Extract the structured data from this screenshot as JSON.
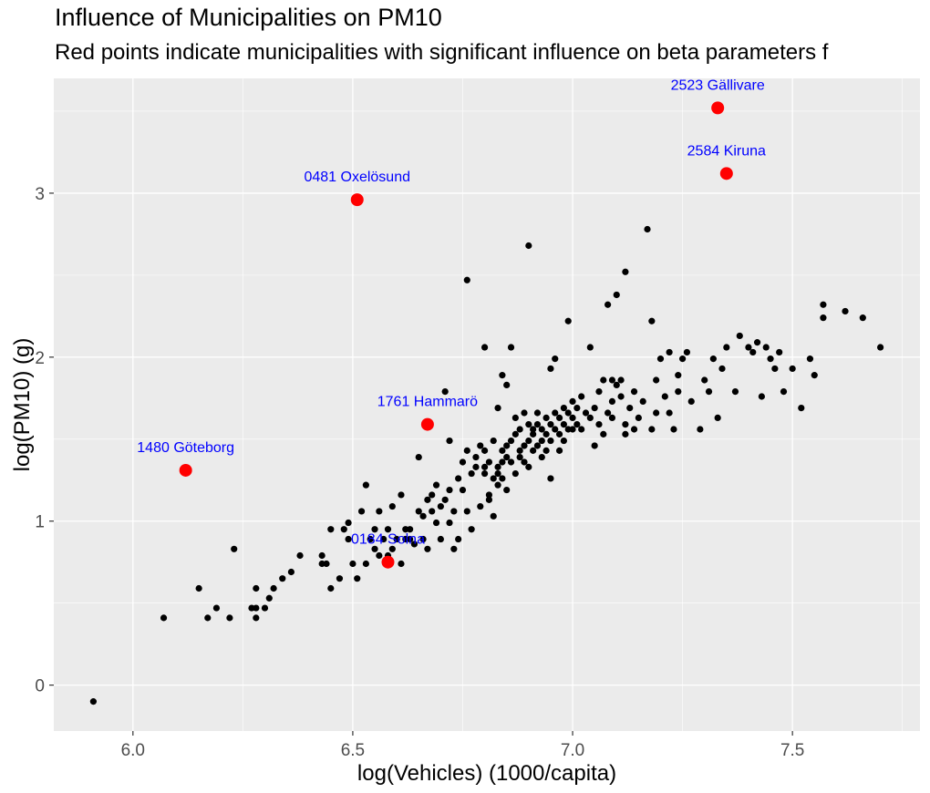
{
  "chart_data": {
    "type": "scatter",
    "title": "Influence of Municipalities on PM10",
    "subtitle": "Red points indicate municipalities with significant influence on beta parameters f",
    "xlabel": "log(Vehicles) (1000/capita)",
    "ylabel": "log(PM10) (g)",
    "xlim": [
      5.82,
      7.79
    ],
    "ylim": [
      -0.28,
      3.7
    ],
    "x_ticks": [
      "6.0",
      "6.5",
      "7.0",
      "7.5"
    ],
    "y_ticks": [
      "0",
      "1",
      "2",
      "3"
    ],
    "grid": true,
    "background": "#EBEBEB",
    "point_color": "#000000",
    "highlight_color": "#FF0000",
    "label_color": "#0000FF",
    "highlighted": [
      {
        "x": 7.33,
        "y": 3.52,
        "label": "2523 Gällivare"
      },
      {
        "x": 7.35,
        "y": 3.12,
        "label": "2584 Kiruna"
      },
      {
        "x": 6.51,
        "y": 2.96,
        "label": "0481 Oxelösund"
      },
      {
        "x": 6.67,
        "y": 1.59,
        "label": "1761 Hammarö"
      },
      {
        "x": 6.12,
        "y": 1.31,
        "label": "1480 Göteborg"
      },
      {
        "x": 6.58,
        "y": 0.75,
        "label": "0184 Solna"
      }
    ],
    "points": [
      [
        5.91,
        -0.1
      ],
      [
        6.07,
        0.41
      ],
      [
        6.15,
        0.59
      ],
      [
        6.17,
        0.41
      ],
      [
        6.19,
        0.47
      ],
      [
        6.22,
        0.41
      ],
      [
        6.23,
        0.83
      ],
      [
        6.27,
        0.47
      ],
      [
        6.28,
        0.41
      ],
      [
        6.28,
        0.59
      ],
      [
        6.28,
        0.47
      ],
      [
        6.3,
        0.47
      ],
      [
        6.31,
        0.53
      ],
      [
        6.32,
        0.59
      ],
      [
        6.34,
        0.65
      ],
      [
        6.36,
        0.69
      ],
      [
        6.38,
        0.79
      ],
      [
        6.43,
        0.74
      ],
      [
        6.43,
        0.79
      ],
      [
        6.44,
        0.74
      ],
      [
        6.45,
        0.59
      ],
      [
        6.45,
        0.95
      ],
      [
        6.47,
        0.65
      ],
      [
        6.48,
        0.95
      ],
      [
        6.49,
        0.89
      ],
      [
        6.49,
        0.99
      ],
      [
        6.5,
        0.74
      ],
      [
        6.51,
        0.65
      ],
      [
        6.52,
        1.06
      ],
      [
        6.53,
        1.22
      ],
      [
        6.53,
        0.74
      ],
      [
        6.54,
        0.89
      ],
      [
        6.55,
        0.95
      ],
      [
        6.55,
        0.83
      ],
      [
        6.56,
        1.06
      ],
      [
        6.56,
        0.79
      ],
      [
        6.57,
        0.89
      ],
      [
        6.58,
        0.95
      ],
      [
        6.58,
        0.79
      ],
      [
        6.59,
        1.09
      ],
      [
        6.59,
        0.83
      ],
      [
        6.6,
        0.89
      ],
      [
        6.61,
        0.74
      ],
      [
        6.61,
        1.16
      ],
      [
        6.62,
        0.95
      ],
      [
        6.62,
        0.89
      ],
      [
        6.63,
        0.95
      ],
      [
        6.63,
        0.89
      ],
      [
        6.64,
        0.86
      ],
      [
        6.65,
        1.06
      ],
      [
        6.65,
        1.39
      ],
      [
        6.66,
        1.03
      ],
      [
        6.66,
        0.89
      ],
      [
        6.67,
        1.13
      ],
      [
        6.67,
        0.83
      ],
      [
        6.68,
        1.06
      ],
      [
        6.68,
        1.16
      ],
      [
        6.69,
        0.99
      ],
      [
        6.69,
        1.22
      ],
      [
        6.7,
        1.09
      ],
      [
        6.7,
        0.89
      ],
      [
        6.71,
        1.13
      ],
      [
        6.71,
        1.79
      ],
      [
        6.72,
        1.19
      ],
      [
        6.72,
        1.49
      ],
      [
        6.72,
        0.99
      ],
      [
        6.73,
        1.06
      ],
      [
        6.73,
        0.83
      ],
      [
        6.74,
        1.26
      ],
      [
        6.74,
        0.89
      ],
      [
        6.75,
        1.36
      ],
      [
        6.75,
        1.19
      ],
      [
        6.76,
        2.47
      ],
      [
        6.76,
        1.43
      ],
      [
        6.76,
        1.06
      ],
      [
        6.77,
        0.95
      ],
      [
        6.77,
        1.29
      ],
      [
        6.78,
        1.39
      ],
      [
        6.78,
        1.33
      ],
      [
        6.79,
        1.09
      ],
      [
        6.79,
        1.46
      ],
      [
        6.8,
        1.29
      ],
      [
        6.8,
        1.33
      ],
      [
        6.8,
        2.06
      ],
      [
        6.8,
        1.43
      ],
      [
        6.81,
        1.16
      ],
      [
        6.81,
        1.36
      ],
      [
        6.81,
        1.13
      ],
      [
        6.82,
        1.49
      ],
      [
        6.82,
        1.03
      ],
      [
        6.82,
        1.26
      ],
      [
        6.83,
        1.22
      ],
      [
        6.83,
        1.29
      ],
      [
        6.83,
        1.33
      ],
      [
        6.84,
        1.36
      ],
      [
        6.84,
        1.89
      ],
      [
        6.84,
        1.43
      ],
      [
        6.84,
        1.26
      ],
      [
        6.85,
        1.39
      ],
      [
        6.85,
        1.46
      ],
      [
        6.85,
        1.19
      ],
      [
        6.85,
        1.83
      ],
      [
        6.86,
        2.06
      ],
      [
        6.86,
        1.36
      ],
      [
        6.86,
        1.49
      ],
      [
        6.87,
        1.29
      ],
      [
        6.87,
        1.53
      ],
      [
        6.87,
        1.63
      ],
      [
        6.88,
        1.43
      ],
      [
        6.88,
        1.56
      ],
      [
        6.88,
        1.39
      ],
      [
        6.89,
        1.46
      ],
      [
        6.89,
        1.66
      ],
      [
        6.89,
        1.36
      ],
      [
        6.9,
        1.49
      ],
      [
        6.9,
        1.59
      ],
      [
        6.9,
        2.68
      ],
      [
        6.91,
        1.53
      ],
      [
        6.91,
        1.43
      ],
      [
        6.91,
        1.56
      ],
      [
        6.92,
        1.46
      ],
      [
        6.92,
        1.59
      ],
      [
        6.92,
        1.66
      ],
      [
        6.93,
        1.56
      ],
      [
        6.93,
        1.49
      ],
      [
        6.94,
        1.53
      ],
      [
        6.94,
        1.63
      ],
      [
        6.94,
        1.43
      ],
      [
        6.95,
        1.59
      ],
      [
        6.95,
        1.49
      ],
      [
        6.95,
        1.93
      ],
      [
        6.96,
        1.56
      ],
      [
        6.96,
        1.66
      ],
      [
        6.96,
        1.99
      ],
      [
        6.97,
        1.53
      ],
      [
        6.97,
        1.63
      ],
      [
        6.98,
        1.59
      ],
      [
        6.98,
        1.69
      ],
      [
        6.98,
        1.49
      ],
      [
        6.99,
        2.22
      ],
      [
        6.99,
        1.66
      ],
      [
        6.99,
        1.56
      ],
      [
        7.0,
        1.73
      ],
      [
        7.0,
        1.63
      ],
      [
        7.01,
        1.59
      ],
      [
        7.01,
        1.69
      ],
      [
        7.02,
        1.56
      ],
      [
        7.02,
        1.76
      ],
      [
        7.03,
        1.66
      ],
      [
        7.04,
        1.63
      ],
      [
        7.04,
        2.06
      ],
      [
        7.05,
        1.69
      ],
      [
        7.06,
        1.79
      ],
      [
        7.06,
        1.59
      ],
      [
        7.07,
        1.53
      ],
      [
        7.07,
        1.86
      ],
      [
        7.08,
        2.32
      ],
      [
        7.08,
        1.66
      ],
      [
        7.09,
        1.73
      ],
      [
        7.09,
        1.63
      ],
      [
        7.1,
        1.83
      ],
      [
        7.1,
        2.38
      ],
      [
        7.11,
        1.76
      ],
      [
        7.11,
        1.86
      ],
      [
        7.12,
        1.59
      ],
      [
        7.12,
        2.52
      ],
      [
        7.13,
        1.69
      ],
      [
        7.14,
        1.56
      ],
      [
        7.14,
        1.79
      ],
      [
        7.15,
        1.63
      ],
      [
        7.16,
        1.73
      ],
      [
        7.17,
        2.78
      ],
      [
        7.18,
        1.56
      ],
      [
        7.18,
        2.22
      ],
      [
        7.19,
        1.86
      ],
      [
        7.19,
        1.66
      ],
      [
        7.2,
        1.99
      ],
      [
        7.21,
        1.76
      ],
      [
        7.22,
        2.03
      ],
      [
        7.22,
        1.66
      ],
      [
        7.23,
        1.56
      ],
      [
        7.24,
        1.89
      ],
      [
        7.24,
        1.79
      ],
      [
        7.25,
        1.99
      ],
      [
        7.26,
        2.03
      ],
      [
        7.27,
        1.73
      ],
      [
        7.29,
        1.56
      ],
      [
        7.3,
        1.86
      ],
      [
        7.31,
        1.79
      ],
      [
        7.32,
        1.99
      ],
      [
        7.33,
        1.63
      ],
      [
        7.34,
        1.93
      ],
      [
        7.35,
        2.06
      ],
      [
        7.37,
        1.79
      ],
      [
        7.38,
        2.13
      ],
      [
        7.4,
        2.06
      ],
      [
        7.41,
        2.03
      ],
      [
        7.42,
        2.09
      ],
      [
        7.43,
        1.76
      ],
      [
        7.44,
        2.06
      ],
      [
        7.45,
        1.99
      ],
      [
        7.46,
        1.93
      ],
      [
        7.47,
        2.03
      ],
      [
        7.48,
        1.79
      ],
      [
        7.5,
        1.93
      ],
      [
        7.52,
        1.69
      ],
      [
        7.54,
        1.99
      ],
      [
        7.55,
        1.89
      ],
      [
        7.57,
        2.32
      ],
      [
        7.57,
        2.24
      ],
      [
        7.62,
        2.28
      ],
      [
        7.66,
        2.24
      ],
      [
        7.7,
        2.06
      ],
      [
        7.05,
        1.46
      ],
      [
        7.09,
        1.86
      ],
      [
        6.95,
        1.26
      ],
      [
        6.9,
        1.33
      ],
      [
        6.93,
        1.39
      ],
      [
        6.83,
        1.69
      ],
      [
        7.12,
        1.53
      ],
      [
        6.97,
        1.43
      ],
      [
        7.0,
        1.56
      ]
    ]
  }
}
